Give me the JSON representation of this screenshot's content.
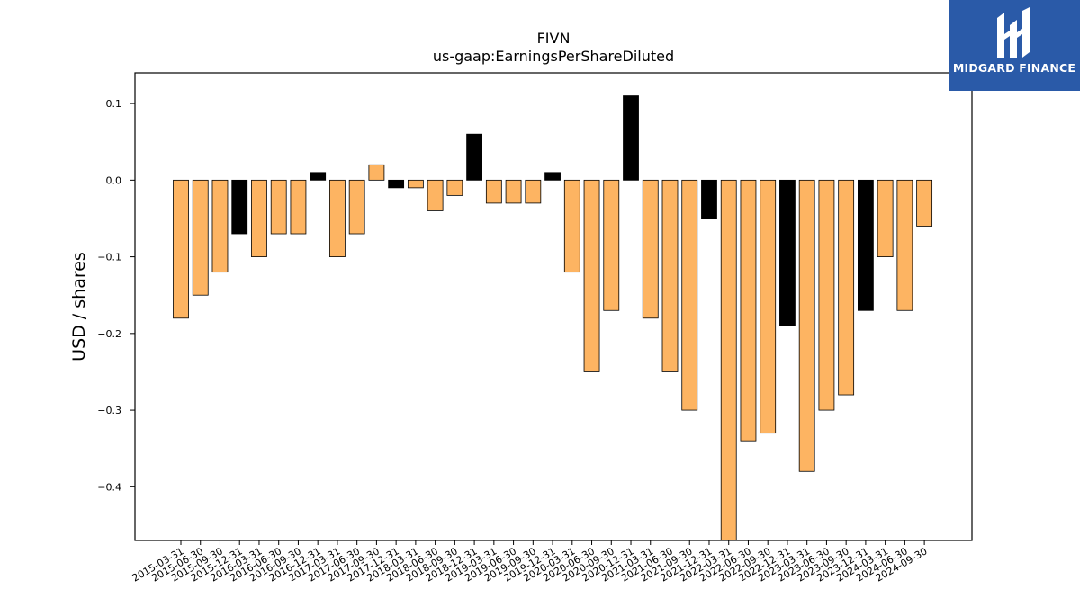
{
  "chart_data": {
    "type": "bar",
    "title": "FIVN",
    "subtitle": "us-gaap:EarningsPerShareDiluted",
    "ylabel": "USD / shares",
    "xlabel": "",
    "ylim": [
      -0.47,
      0.14
    ],
    "yticks": [
      0.1,
      0.0,
      -0.1,
      -0.2,
      -0.3,
      -0.4
    ],
    "ytick_labels": [
      "0.1",
      "0.0",
      "−0.1",
      "−0.2",
      "−0.3",
      "−0.4"
    ],
    "categories": [
      "2015-03-31",
      "2015-06-30",
      "2015-09-30",
      "2015-12-31",
      "2016-03-31",
      "2016-06-30",
      "2016-09-30",
      "2016-12-31",
      "2017-03-31",
      "2017-06-30",
      "2017-09-30",
      "2017-12-31",
      "2018-03-31",
      "2018-06-30",
      "2018-09-30",
      "2018-12-31",
      "2019-03-31",
      "2019-06-30",
      "2019-09-30",
      "2019-12-31",
      "2020-03-31",
      "2020-06-30",
      "2020-09-30",
      "2020-12-31",
      "2021-03-31",
      "2021-06-30",
      "2021-09-30",
      "2021-12-31",
      "2022-03-31",
      "2022-06-30",
      "2022-09-30",
      "2022-12-31",
      "2023-03-31",
      "2023-06-30",
      "2023-09-30",
      "2023-12-31",
      "2024-03-31",
      "2024-06-30",
      "2024-09-30"
    ],
    "values": [
      -0.18,
      -0.15,
      -0.12,
      -0.07,
      -0.1,
      -0.07,
      -0.07,
      0.01,
      -0.1,
      -0.07,
      0.02,
      -0.01,
      -0.01,
      -0.04,
      -0.02,
      0.06,
      -0.03,
      -0.03,
      -0.03,
      0.01,
      -0.12,
      -0.25,
      -0.17,
      0.11,
      -0.18,
      -0.25,
      -0.3,
      -0.05,
      -0.47,
      -0.34,
      -0.33,
      -0.19,
      -0.38,
      -0.3,
      -0.28,
      -0.17,
      -0.1,
      -0.17,
      -0.06
    ],
    "bar_colors": [
      "#fdb462",
      "#fdb462",
      "#fdb462",
      "#000000",
      "#fdb462",
      "#fdb462",
      "#fdb462",
      "#000000",
      "#fdb462",
      "#fdb462",
      "#fdb462",
      "#000000",
      "#fdb462",
      "#fdb462",
      "#fdb462",
      "#000000",
      "#fdb462",
      "#fdb462",
      "#fdb462",
      "#000000",
      "#fdb462",
      "#fdb462",
      "#fdb462",
      "#000000",
      "#fdb462",
      "#fdb462",
      "#fdb462",
      "#000000",
      "#fdb462",
      "#fdb462",
      "#fdb462",
      "#000000",
      "#fdb462",
      "#fdb462",
      "#fdb462",
      "#000000",
      "#fdb462",
      "#fdb462",
      "#fdb462"
    ],
    "grid": false,
    "legend": "none"
  },
  "branding": {
    "logo_text": "MIDGARD FINANCE",
    "logo_color": "#2a5aa8"
  }
}
